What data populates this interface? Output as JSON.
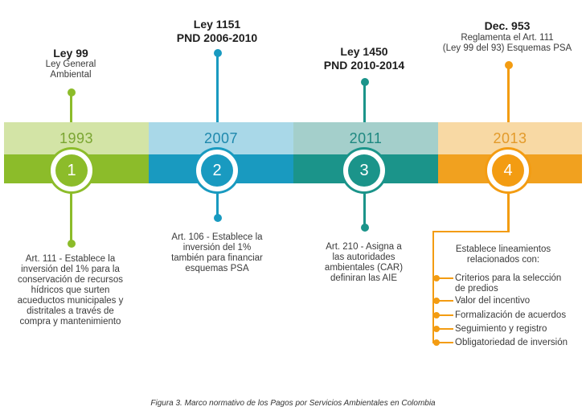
{
  "milestones": [
    {
      "year": "1993",
      "number": "1",
      "title_lines": [
        "Ley 99"
      ],
      "subtitle_lines": [
        "Ley General",
        "Ambiental"
      ],
      "description_lines": [
        "Art. 111 - Establece la",
        "inversión del 1% para la",
        "conservación de recursos",
        "hídricos que surten",
        "acueductos municipales y",
        "distritales  a través  de",
        "compra y mantenimiento"
      ],
      "colors": {
        "light": "#d3e4a6",
        "dark": "#8cbc2a",
        "accent": "#8cbc2a"
      }
    },
    {
      "year": "2007",
      "number": "2",
      "title_lines": [
        "Ley 1151",
        "PND 2006-2010"
      ],
      "subtitle_lines": [],
      "description_lines": [
        "Art. 106 - Establece la",
        "inversión del 1%",
        "también para financiar",
        "esquemas PSA"
      ],
      "colors": {
        "light": "#a9d8e8",
        "dark": "#199ac0",
        "accent": "#199ac0"
      }
    },
    {
      "year": "2011",
      "number": "3",
      "title_lines": [
        "Ley 1450",
        "PND 2010-2014"
      ],
      "subtitle_lines": [],
      "description_lines": [
        "Art. 210 - Asigna a",
        "las autoridades",
        "ambientales (CAR)",
        "definiran las AIE"
      ],
      "colors": {
        "light": "#a4cfcb",
        "dark": "#1b948a",
        "accent": "#1b948a"
      }
    },
    {
      "year": "2013",
      "number": "4",
      "title_lines": [
        "Dec. 953"
      ],
      "subtitle_lines": [
        "Reglamenta el Art. 111",
        "(Ley 99 del 93) Esquemas PSA"
      ],
      "description_lines": [],
      "colors": {
        "light": "#f8d9a4",
        "dark": "#f1a11f",
        "accent": "#f39c12"
      }
    }
  ],
  "guidelines": {
    "intro_lines": [
      "Establece lineamientos",
      "relacionados con:"
    ],
    "items": [
      [
        "Criterios para la selección",
        "de predios"
      ],
      [
        "Valor del incentivo"
      ],
      [
        "Formalización de acuerdos"
      ],
      [
        "Seguimiento y registro"
      ],
      [
        "Obligatoriedad de inversión"
      ]
    ]
  },
  "caption": "Figura 3. Marco normativo de los Pagos por Servicios Ambientales en Colombia"
}
